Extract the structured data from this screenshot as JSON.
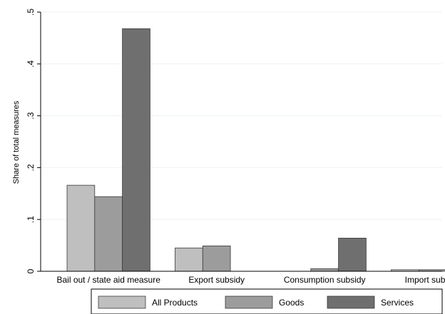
{
  "chart_data": {
    "type": "bar",
    "title": "",
    "xlabel": "",
    "ylabel": "Share of total measures",
    "categories": [
      "Bail out / state aid measure",
      "Export subsidy",
      "Consumption subsidy",
      "Import subsidy"
    ],
    "series": [
      {
        "name": "All Products",
        "color": "#bfbfbf",
        "values": [
          0.166,
          0.045,
          0.0,
          0.003
        ]
      },
      {
        "name": "Goods",
        "color": "#9c9c9c",
        "values": [
          0.144,
          0.049,
          0.005,
          0.003
        ]
      },
      {
        "name": "Services",
        "color": "#6f6f6f",
        "values": [
          0.468,
          0.0,
          0.064,
          0.0
        ]
      }
    ],
    "ylim": [
      0,
      0.5
    ],
    "yticks": [
      0,
      0.1,
      0.2,
      0.3,
      0.4,
      0.5
    ],
    "ytick_labels": [
      "0",
      ".1",
      ".2",
      ".3",
      ".4",
      ".5"
    ],
    "grid": true,
    "legend_position": "bottom"
  }
}
